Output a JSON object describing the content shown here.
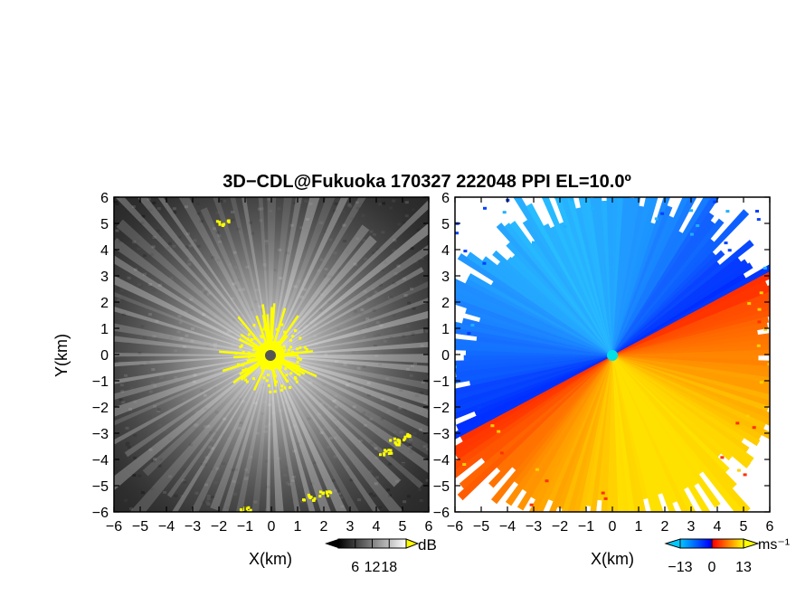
{
  "title": "3D−CDL@Fukuoka 170327 222048 PPI EL=10.0º",
  "chart_data": [
    {
      "type": "heatmap",
      "panel": "reflectivity",
      "xlabel": "X(km)",
      "ylabel": "Y(km)",
      "xlim": [
        -6,
        6
      ],
      "ylim": [
        -6,
        6
      ],
      "x_ticks": [
        "−6",
        "−5",
        "−4",
        "−3",
        "−2",
        "−1",
        "0",
        "1",
        "2",
        "3",
        "4",
        "5",
        "6"
      ],
      "y_ticks": [
        "−6",
        "−5",
        "−4",
        "−3",
        "−2",
        "−1",
        "0",
        "1",
        "2",
        "3",
        "4",
        "5",
        "6"
      ],
      "colorbar": {
        "unit": "dB",
        "ticks": [
          "6",
          "12",
          "18"
        ],
        "range": [
          0,
          24
        ],
        "colors": [
          "#000000",
          "#ffffff"
        ],
        "overflow_color": "#ffff00"
      },
      "background_color": "#2a2a2a",
      "saturation_color": "#ffff00",
      "radar_center": [
        0,
        0
      ],
      "saturated_clusters": [
        {
          "x": -1.9,
          "y": 5.1
        },
        {
          "x": 4.6,
          "y": -3.3
        },
        {
          "x": 5.0,
          "y": -3.1
        },
        {
          "x": 4.3,
          "y": -3.7
        },
        {
          "x": 2.0,
          "y": -5.3
        },
        {
          "x": 1.4,
          "y": -5.4
        },
        {
          "x": -1.0,
          "y": -5.9
        }
      ]
    },
    {
      "type": "heatmap",
      "panel": "doppler velocity",
      "xlabel": "X(km)",
      "xlim": [
        -6,
        6
      ],
      "ylim": [
        -6,
        6
      ],
      "x_ticks": [
        "−6",
        "−5",
        "−4",
        "−3",
        "−2",
        "−1",
        "0",
        "1",
        "2",
        "3",
        "4",
        "5",
        "6"
      ],
      "y_ticks": [
        "−6",
        "−5",
        "−4",
        "−3",
        "−2",
        "−1",
        "0",
        "1",
        "2",
        "3",
        "4",
        "5",
        "6"
      ],
      "colorbar": {
        "unit": "ms⁻¹",
        "ticks": [
          "−13",
          "0",
          "13"
        ],
        "range": [
          -13,
          13
        ],
        "colors": [
          "#00c8ff",
          "#0000ff",
          "#ff0000",
          "#ffff00"
        ]
      },
      "background_color": "#ffffff",
      "radar_center": [
        0,
        0
      ],
      "center_marker_color": "#00e0e8",
      "velocity_boundary_azimuth_deg": 62,
      "negative_side": "northwest",
      "positive_side": "southeast"
    }
  ]
}
